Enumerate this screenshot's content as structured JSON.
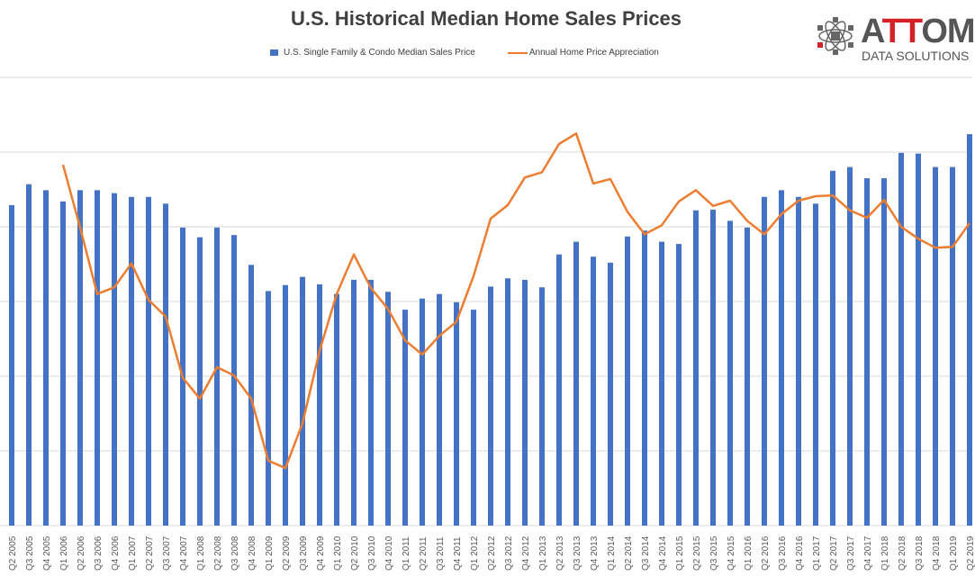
{
  "chart_data": {
    "type": "bar",
    "title": "U.S. Historical Median Home Sales Prices",
    "xlabel": "",
    "ylabel": "",
    "ylim": [
      0,
      6
    ],
    "y2lim": [
      0,
      6
    ],
    "grid": true,
    "legend_position": "top",
    "categories": [
      "Q2 2005",
      "Q3 2005",
      "Q4 2005",
      "Q1 2006",
      "Q2 2006",
      "Q3 2006",
      "Q4 2006",
      "Q1 2007",
      "Q2 2007",
      "Q3 2007",
      "Q4 2007",
      "Q1 2008",
      "Q2 2008",
      "Q3 2008",
      "Q4 2008",
      "Q1 2009",
      "Q2 2009",
      "Q3 2009",
      "Q4 2009",
      "Q1 2010",
      "Q2 2010",
      "Q3 2010",
      "Q4 2010",
      "Q1 2011",
      "Q2 2011",
      "Q3 2011",
      "Q4 2011",
      "Q1 2012",
      "Q2 2012",
      "Q3 2012",
      "Q4 2012",
      "Q1 2013",
      "Q2 2013",
      "Q3 2013",
      "Q4 2013",
      "Q1 2014",
      "Q2 2014",
      "Q3 2014",
      "Q4 2014",
      "Q1 2015",
      "Q2 2015",
      "Q3 2015",
      "Q4 2015",
      "Q1 2016",
      "Q2 2016",
      "Q3 2016",
      "Q4 2016",
      "Q1 2017",
      "Q2 2017",
      "Q3 2017",
      "Q4 2017",
      "Q1 2018",
      "Q2 2018",
      "Q3 2018",
      "Q4 2018",
      "Q1 2019",
      "Q2 2019"
    ],
    "series": [
      {
        "name": "U.S. Single Family & Condo Median Sales Price",
        "type": "bar",
        "color": "#4472c4",
        "values": [
          4.29,
          4.57,
          4.49,
          4.34,
          4.49,
          4.49,
          4.45,
          4.4,
          4.4,
          4.31,
          3.99,
          3.86,
          3.99,
          3.89,
          3.49,
          3.14,
          3.22,
          3.33,
          3.23,
          3.1,
          3.29,
          3.29,
          3.13,
          2.89,
          3.04,
          3.1,
          2.99,
          2.89,
          3.2,
          3.31,
          3.29,
          3.19,
          3.63,
          3.8,
          3.6,
          3.52,
          3.87,
          3.95,
          3.8,
          3.77,
          4.22,
          4.23,
          4.08,
          3.99,
          4.4,
          4.49,
          4.4,
          4.31,
          4.75,
          4.8,
          4.65,
          4.65,
          4.99,
          4.98,
          4.8,
          4.8,
          5.24
        ]
      },
      {
        "name": "Annual Home Price Appreciation",
        "type": "line",
        "color": "#ed7d31",
        "values": [
          null,
          null,
          null,
          4.83,
          3.99,
          3.1,
          3.19,
          3.51,
          3.02,
          2.8,
          1.98,
          1.7,
          2.12,
          2.01,
          1.7,
          0.87,
          0.77,
          1.37,
          2.34,
          3.1,
          3.63,
          3.18,
          2.9,
          2.48,
          2.29,
          2.54,
          2.73,
          3.34,
          4.11,
          4.29,
          4.66,
          4.73,
          5.11,
          5.25,
          4.58,
          4.64,
          4.2,
          3.9,
          4.02,
          4.34,
          4.49,
          4.28,
          4.35,
          4.08,
          3.9,
          4.17,
          4.35,
          4.41,
          4.42,
          4.22,
          4.12,
          4.36,
          4.0,
          3.84,
          3.72,
          3.73,
          4.05
        ]
      }
    ]
  },
  "logo": {
    "name": "ATTOM",
    "subtitle": "DATA SOLUTIONS"
  }
}
